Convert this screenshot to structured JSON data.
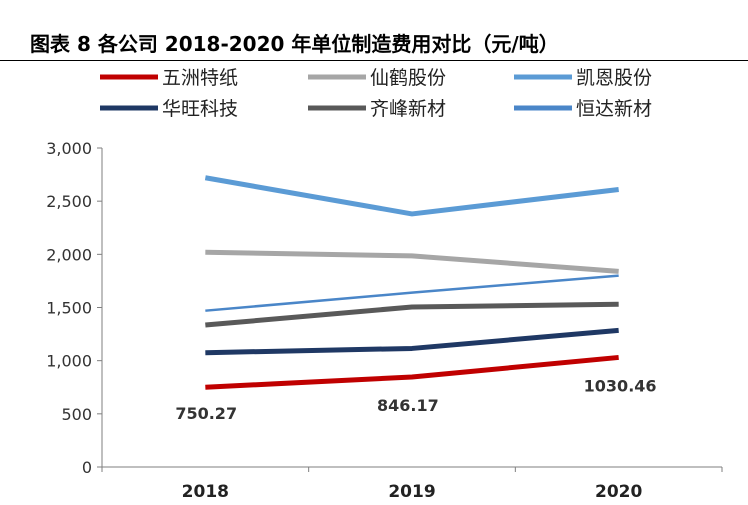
{
  "title": "图表 8 各公司 2018-2020 年单位制造费用对比（元/吨）",
  "chart_data": {
    "type": "line",
    "categories": [
      "2018",
      "2019",
      "2020"
    ],
    "ylim": [
      0,
      3000
    ],
    "yticks": [
      0,
      500,
      1000,
      1500,
      2000,
      2500,
      3000
    ],
    "ytick_labels": [
      "0",
      "500",
      "1,000",
      "1,500",
      "2,000",
      "2,500",
      "3,000"
    ],
    "grid": false,
    "legend_position": "top",
    "series": [
      {
        "name": "五洲特纸",
        "values": [
          750.27,
          846.17,
          1030.46
        ],
        "color": "#c00000",
        "width": 5
      },
      {
        "name": "仙鹤股份",
        "values": [
          2020,
          1985,
          1840
        ],
        "color": "#a6a6a6",
        "width": 5
      },
      {
        "name": "凯恩股份",
        "values": [
          2720,
          2380,
          2610
        ],
        "color": "#5b9bd5",
        "width": 5
      },
      {
        "name": "华旺科技",
        "values": [
          1075,
          1115,
          1285
        ],
        "color": "#1f3864",
        "width": 5
      },
      {
        "name": "齐峰新材",
        "values": [
          1335,
          1505,
          1530
        ],
        "color": "#595959",
        "width": 5
      },
      {
        "name": "恒达新材",
        "values": [
          1470,
          1640,
          1800
        ],
        "color": "#4a86c8",
        "width": 2.5
      }
    ],
    "annotations": [
      {
        "series": 0,
        "index": 0,
        "text": "750.27"
      },
      {
        "series": 0,
        "index": 1,
        "text": "846.17"
      },
      {
        "series": 0,
        "index": 2,
        "text": "1030.46"
      }
    ]
  }
}
